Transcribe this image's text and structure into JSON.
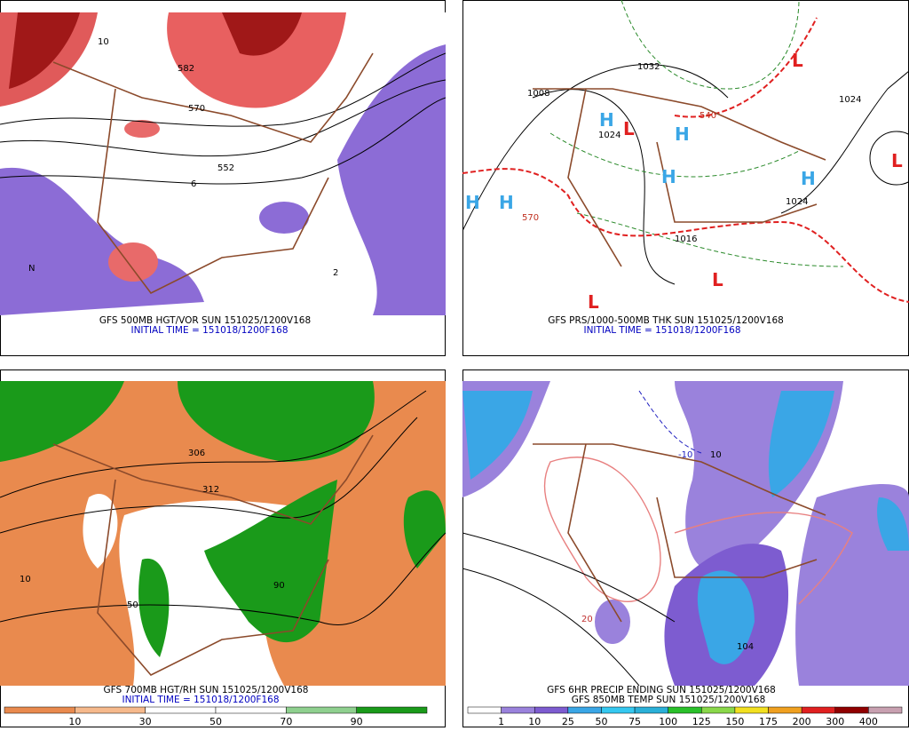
{
  "panels": [
    {
      "caption": "GFS 500MB HGT/VOR SUN 151025/1200V168",
      "initial": "INITIAL TIME = 151018/1200F168",
      "labels": [
        "570",
        "552",
        "582",
        "10",
        "6",
        "2",
        "N"
      ]
    },
    {
      "caption": "GFS PRS/1000-500MB THK SUN 151025/1200V168",
      "initial": "INITIAL TIME = 151018/1200F168",
      "labels": [
        "H",
        "L",
        "1024",
        "1016",
        "1008",
        "1032",
        "570",
        "540"
      ]
    },
    {
      "caption": "GFS 700MB HGT/RH SUN 151025/1200V168",
      "initial": "INITIAL TIME = 151018/1200F168",
      "labels": [
        "10",
        "50",
        "90",
        "312",
        "306"
      ]
    },
    {
      "caption": "GFS 6HR PRECIP ENDING SUN 151025/1200V168",
      "caption2": "GFS 850MB TEMP SUN 151025/1200V168",
      "labels": [
        "104",
        "10",
        "20",
        "-10"
      ]
    }
  ],
  "colorbars": [
    {
      "colors": [
        "#e98a4e",
        "#f6b98c",
        "#ffffff",
        "#ffffff",
        "#8fd08f",
        "#1a9a1a"
      ],
      "labels": [
        10,
        30,
        50,
        70,
        90
      ]
    },
    {
      "colors": [
        "#ffffff",
        "#9a82dc",
        "#7d5cd0",
        "#3aa6e6",
        "#35c8f0",
        "#2ab0d8",
        "#2ac02a",
        "#8ad84a",
        "#f2e020",
        "#f0a020",
        "#e02020",
        "#900000",
        "#c8a0b0"
      ],
      "labels": [
        1,
        10,
        25,
        50,
        75,
        100,
        125,
        150,
        175,
        200,
        300,
        400
      ]
    }
  ]
}
